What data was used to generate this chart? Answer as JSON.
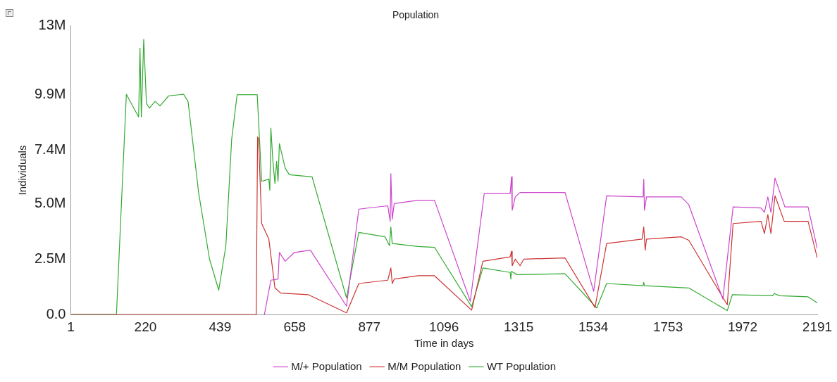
{
  "chart_data": {
    "type": "line",
    "title": "Population",
    "xlabel": "Time in days",
    "ylabel": "Individuals",
    "xlim": [
      1,
      2191
    ],
    "xticks": [
      1,
      220,
      439,
      658,
      877,
      1096,
      1315,
      1534,
      1753,
      1972,
      2191
    ],
    "ylim": [
      0,
      13000000
    ],
    "yticks": [
      {
        "value": 0,
        "label": "0.0"
      },
      {
        "value": 2500000,
        "label": "2.5M"
      },
      {
        "value": 5000000,
        "label": "5.0M"
      },
      {
        "value": 7400000,
        "label": "7.4M"
      },
      {
        "value": 9900000,
        "label": "9.9M"
      },
      {
        "value": 13000000,
        "label": "13M"
      }
    ],
    "grid": false,
    "legend": "bottom",
    "marker": "none",
    "line_style": "solid",
    "series": [
      {
        "name": "M/+ Population",
        "color": "#cc44cc",
        "x": [
          569,
          588,
          609,
          613,
          630,
          657,
          704,
          810,
          846,
          931,
          938,
          940,
          944,
          950,
          1020,
          1068,
          1173,
          1214,
          1290,
          1294,
          1296,
          1305,
          1319,
          1451,
          1535,
          1573,
          1680,
          1682,
          1684,
          1690,
          1792,
          1814,
          1914,
          1944,
          2026,
          2036,
          2046,
          2055,
          2067,
          2096,
          2164,
          2191
        ],
        "values": [
          0,
          1550000,
          1600000,
          2800000,
          2400000,
          2800000,
          2900000,
          380000,
          4750000,
          4900000,
          4200000,
          6350000,
          4300000,
          5000000,
          5150000,
          5150000,
          600000,
          5450000,
          5450000,
          6200000,
          4700000,
          5300000,
          5500000,
          5500000,
          1050000,
          5350000,
          5300000,
          6100000,
          4700000,
          5300000,
          5300000,
          4950000,
          700000,
          4850000,
          4800000,
          4600000,
          5300000,
          4600000,
          6150000,
          4850000,
          4850000,
          2970000
        ]
      },
      {
        "name": "M/M Population",
        "color": "#cc3333",
        "x": [
          1,
          545,
          549,
          552,
          561,
          582,
          600,
          617,
          697,
          718,
          810,
          846,
          931,
          940,
          944,
          950,
          1020,
          1068,
          1177,
          1210,
          1290,
          1294,
          1296,
          1305,
          1319,
          1330,
          1451,
          1539,
          1573,
          1677,
          1682,
          1686,
          1690,
          1792,
          1814,
          1927,
          1944,
          2026,
          2036,
          2046,
          2055,
          2067,
          2094,
          2164,
          2191
        ],
        "values": [
          0,
          0,
          8000000,
          7900000,
          4100000,
          3400000,
          1200000,
          970000,
          900000,
          750000,
          80000,
          1400000,
          1550000,
          2100000,
          1400000,
          1600000,
          1750000,
          1750000,
          200000,
          2400000,
          2600000,
          2850000,
          2200000,
          2500000,
          2200000,
          2500000,
          2550000,
          320000,
          3200000,
          3400000,
          3950000,
          2900000,
          3400000,
          3500000,
          3350000,
          440000,
          4100000,
          4200000,
          3650000,
          4500000,
          3650000,
          5350000,
          4200000,
          4200000,
          2550000
        ]
      },
      {
        "name": "WT Population",
        "color": "#33aa33",
        "x": [
          1,
          135,
          164,
          200,
          204,
          208,
          215,
          223,
          232,
          248,
          263,
          288,
          332,
          345,
          376,
          408,
          435,
          456,
          473,
          489,
          548,
          561,
          582,
          585,
          588,
          594,
          600,
          605,
          609,
          613,
          630,
          642,
          709,
          810,
          846,
          923,
          936,
          940,
          944,
          1020,
          1068,
          1177,
          1210,
          1290,
          1292,
          1294,
          1310,
          1451,
          1544,
          1573,
          1680,
          1682,
          1684,
          1814,
          1927,
          1942,
          2060,
          2065,
          2080,
          2164,
          2191
        ],
        "values": [
          0,
          0,
          9920000,
          8900000,
          12000000,
          8900000,
          12400000,
          9500000,
          9300000,
          9600000,
          9400000,
          9850000,
          9920000,
          9600000,
          5500000,
          2500000,
          1100000,
          3100000,
          7900000,
          9900000,
          9900000,
          6000000,
          6100000,
          5600000,
          8400000,
          6900000,
          5900000,
          6900000,
          6000000,
          7700000,
          6600000,
          6300000,
          6200000,
          750000,
          3700000,
          3500000,
          3100000,
          3950000,
          3200000,
          3070000,
          3030000,
          360000,
          2100000,
          1900000,
          1600000,
          1950000,
          1800000,
          1840000,
          300000,
          1400000,
          1300000,
          1450000,
          1300000,
          1200000,
          180000,
          900000,
          850000,
          950000,
          850000,
          800000,
          530000
        ]
      }
    ]
  }
}
